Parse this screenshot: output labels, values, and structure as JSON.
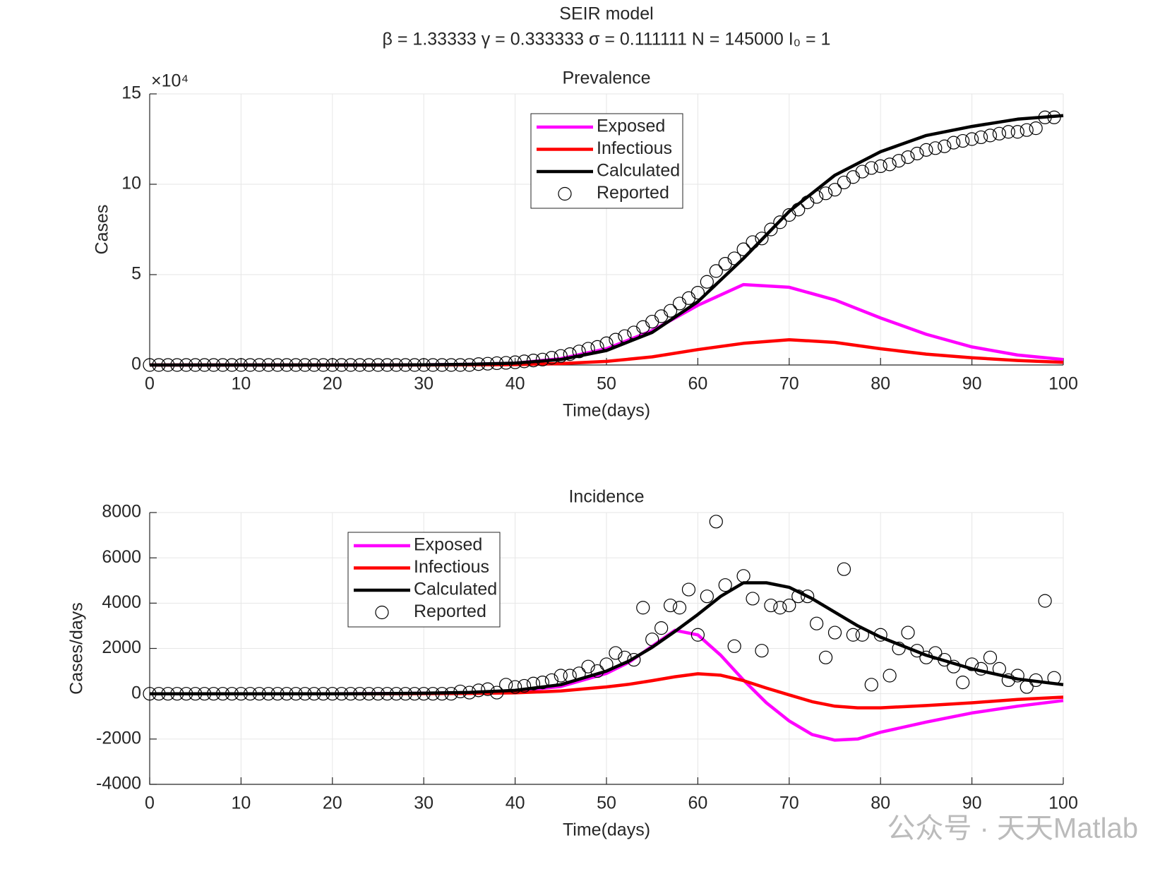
{
  "title": "SEIR model",
  "subtitle": "β = 1.33333  γ = 0.333333  σ = 0.111111  N = 145000  I₀ = 1",
  "watermark": "公众号 · 天天Matlab",
  "chart_data": [
    {
      "type": "line",
      "title": "Prevalence",
      "x_label": "Time(days)",
      "y_label": "Cases",
      "y_multiplier": "×10⁴",
      "xlim": [
        0,
        100
      ],
      "xticks": [
        0,
        10,
        20,
        30,
        40,
        50,
        60,
        70,
        80,
        90,
        100
      ],
      "ylim": [
        0,
        15
      ],
      "yticks": [
        0,
        5,
        10,
        15
      ],
      "grid": true,
      "series": [
        {
          "name": "Exposed",
          "color": "#ff00ff",
          "marker": "none",
          "x": [
            0,
            5,
            10,
            15,
            20,
            25,
            30,
            35,
            40,
            45,
            50,
            55,
            60,
            65,
            70,
            75,
            80,
            85,
            90,
            95,
            100
          ],
          "values": [
            0,
            0,
            0,
            0,
            0,
            0,
            0.01,
            0.04,
            0.1,
            0.35,
            0.9,
            1.9,
            3.3,
            4.45,
            4.3,
            3.6,
            2.6,
            1.7,
            1.0,
            0.55,
            0.3
          ]
        },
        {
          "name": "Infectious",
          "color": "#ff0000",
          "marker": "none",
          "x": [
            0,
            5,
            10,
            15,
            20,
            25,
            30,
            35,
            40,
            45,
            50,
            55,
            60,
            65,
            70,
            75,
            80,
            85,
            90,
            95,
            100
          ],
          "values": [
            0,
            0,
            0,
            0,
            0,
            0,
            0,
            0.01,
            0.02,
            0.08,
            0.2,
            0.45,
            0.85,
            1.2,
            1.4,
            1.25,
            0.9,
            0.6,
            0.4,
            0.25,
            0.15
          ]
        },
        {
          "name": "Calculated",
          "color": "#000000",
          "marker": "none",
          "x": [
            0,
            5,
            10,
            15,
            20,
            25,
            30,
            35,
            40,
            45,
            50,
            55,
            60,
            65,
            70,
            75,
            80,
            85,
            90,
            95,
            100
          ],
          "values": [
            0,
            0,
            0,
            0,
            0,
            0,
            0.01,
            0.04,
            0.1,
            0.3,
            0.8,
            1.8,
            3.5,
            5.9,
            8.5,
            10.5,
            11.8,
            12.7,
            13.2,
            13.6,
            13.8
          ]
        },
        {
          "name": "Reported",
          "color": "#000000",
          "marker": "circle",
          "x": [
            0,
            1,
            2,
            3,
            4,
            5,
            6,
            7,
            8,
            9,
            10,
            11,
            12,
            13,
            14,
            15,
            16,
            17,
            18,
            19,
            20,
            21,
            22,
            23,
            24,
            25,
            26,
            27,
            28,
            29,
            30,
            31,
            32,
            33,
            34,
            35,
            36,
            37,
            38,
            39,
            40,
            41,
            42,
            43,
            44,
            45,
            46,
            47,
            48,
            49,
            50,
            51,
            52,
            53,
            54,
            55,
            56,
            57,
            58,
            59,
            60,
            61,
            62,
            63,
            64,
            65,
            66,
            67,
            68,
            69,
            70,
            71,
            72,
            73,
            74,
            75,
            76,
            77,
            78,
            79,
            80,
            81,
            82,
            83,
            84,
            85,
            86,
            87,
            88,
            89,
            90,
            91,
            92,
            93,
            94,
            95,
            96,
            97,
            98,
            99
          ],
          "values": [
            0,
            0,
            0,
            0,
            0,
            0,
            0,
            0,
            0,
            0,
            0,
            0,
            0,
            0,
            0,
            0,
            0,
            0,
            0,
            0,
            0,
            0,
            0,
            0,
            0,
            0,
            0,
            0,
            0,
            0,
            0,
            0,
            0,
            0,
            0,
            0,
            0.05,
            0.07,
            0.1,
            0.12,
            0.15,
            0.2,
            0.25,
            0.3,
            0.4,
            0.5,
            0.6,
            0.75,
            0.9,
            1.0,
            1.2,
            1.4,
            1.6,
            1.8,
            2.1,
            2.4,
            2.7,
            3.0,
            3.4,
            3.7,
            4.0,
            4.6,
            5.2,
            5.6,
            5.9,
            6.4,
            6.8,
            7.0,
            7.5,
            7.9,
            8.3,
            8.6,
            9.0,
            9.3,
            9.5,
            9.7,
            10.1,
            10.4,
            10.7,
            10.9,
            11.0,
            11.1,
            11.3,
            11.5,
            11.7,
            11.9,
            12.0,
            12.1,
            12.3,
            12.4,
            12.5,
            12.6,
            12.7,
            12.8,
            12.9,
            12.9,
            13.0,
            13.1,
            13.7,
            13.7
          ]
        }
      ]
    },
    {
      "type": "line",
      "title": "Incidence",
      "x_label": "Time(days)",
      "y_label": "Cases/days",
      "xlim": [
        0,
        100
      ],
      "xticks": [
        0,
        10,
        20,
        30,
        40,
        50,
        60,
        70,
        80,
        90,
        100
      ],
      "ylim": [
        -4000,
        8000
      ],
      "yticks": [
        -4000,
        -2000,
        0,
        2000,
        4000,
        6000,
        8000
      ],
      "grid": true,
      "series": [
        {
          "name": "Exposed",
          "color": "#ff00ff",
          "marker": "none",
          "x": [
            0,
            5,
            10,
            15,
            20,
            25,
            30,
            35,
            40,
            45,
            50,
            52.5,
            55,
            57.5,
            60,
            62.5,
            65,
            67.5,
            70,
            72.5,
            75,
            77.5,
            80,
            85,
            90,
            95,
            100
          ],
          "values": [
            0,
            0,
            0,
            0,
            0,
            5,
            20,
            50,
            120,
            320,
            900,
            1400,
            2100,
            2800,
            2600,
            1700,
            600,
            -400,
            -1200,
            -1800,
            -2050,
            -2000,
            -1700,
            -1250,
            -850,
            -550,
            -300
          ]
        },
        {
          "name": "Infectious",
          "color": "#ff0000",
          "marker": "none",
          "x": [
            0,
            5,
            10,
            15,
            20,
            25,
            30,
            35,
            40,
            45,
            50,
            52.5,
            55,
            57.5,
            60,
            62.5,
            65,
            67.5,
            70,
            72.5,
            75,
            77.5,
            80,
            85,
            90,
            95,
            100
          ],
          "values": [
            0,
            0,
            0,
            0,
            0,
            0,
            5,
            15,
            40,
            120,
            300,
            420,
            580,
            750,
            880,
            820,
            580,
            250,
            -50,
            -350,
            -550,
            -620,
            -620,
            -520,
            -400,
            -250,
            -150
          ]
        },
        {
          "name": "Calculated",
          "color": "#000000",
          "marker": "none",
          "x": [
            0,
            5,
            10,
            15,
            20,
            25,
            30,
            35,
            40,
            45,
            50,
            52.5,
            55,
            57.5,
            60,
            62.5,
            65,
            67.5,
            70,
            72.5,
            75,
            77.5,
            80,
            85,
            90,
            95,
            100
          ],
          "values": [
            0,
            0,
            0,
            0,
            0,
            5,
            25,
            60,
            150,
            400,
            1000,
            1450,
            2050,
            2750,
            3500,
            4300,
            4900,
            4900,
            4700,
            4200,
            3600,
            3000,
            2500,
            1700,
            1100,
            650,
            400
          ]
        },
        {
          "name": "Reported",
          "color": "#000000",
          "marker": "circle",
          "x": [
            0,
            1,
            2,
            3,
            4,
            5,
            6,
            7,
            8,
            9,
            10,
            11,
            12,
            13,
            14,
            15,
            16,
            17,
            18,
            19,
            20,
            21,
            22,
            23,
            24,
            25,
            26,
            27,
            28,
            29,
            30,
            31,
            32,
            33,
            34,
            35,
            36,
            37,
            38,
            39,
            40,
            41,
            42,
            43,
            44,
            45,
            46,
            47,
            48,
            49,
            50,
            51,
            52,
            53,
            54,
            55,
            56,
            57,
            58,
            59,
            60,
            61,
            62,
            63,
            64,
            65,
            66,
            67,
            68,
            69,
            70,
            71,
            72,
            73,
            74,
            75,
            76,
            77,
            78,
            79,
            80,
            81,
            82,
            83,
            84,
            85,
            86,
            87,
            88,
            89,
            90,
            91,
            92,
            93,
            94,
            95,
            96,
            97,
            98,
            99
          ],
          "values": [
            0,
            0,
            0,
            0,
            0,
            0,
            0,
            0,
            0,
            0,
            0,
            0,
            0,
            0,
            0,
            0,
            0,
            0,
            0,
            0,
            0,
            0,
            0,
            0,
            0,
            0,
            0,
            0,
            0,
            0,
            0,
            0,
            0,
            0,
            100,
            50,
            150,
            200,
            50,
            400,
            300,
            350,
            450,
            500,
            600,
            800,
            800,
            900,
            1200,
            1000,
            1300,
            1800,
            1600,
            1500,
            3800,
            2400,
            2900,
            3900,
            3800,
            4600,
            2600,
            4300,
            7600,
            4800,
            2100,
            5200,
            4200,
            1900,
            3900,
            3800,
            3900,
            4300,
            4300,
            3100,
            1600,
            2700,
            5500,
            2600,
            2600,
            400,
            2600,
            800,
            2000,
            2700,
            1900,
            1600,
            1800,
            1500,
            1200,
            500,
            1300,
            1100,
            1600,
            1100,
            600,
            800,
            300,
            600,
            4100,
            700
          ]
        }
      ]
    }
  ]
}
